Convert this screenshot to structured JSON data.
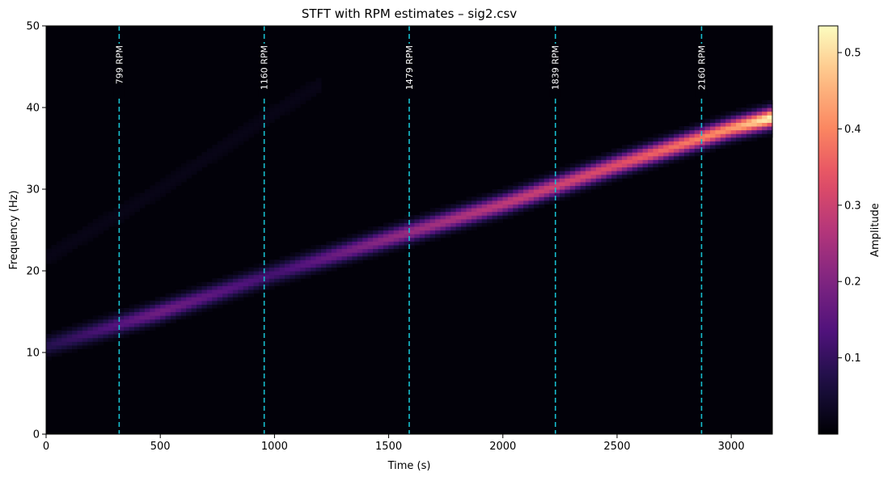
{
  "chart_data": {
    "type": "heatmap",
    "title": "STFT with RPM estimates – sig2.csv",
    "xlabel": "Time (s)",
    "ylabel": "Frequency (Hz)",
    "colorbar_label": "Amplitude",
    "colormap": "magma",
    "xlim": [
      0,
      3180
    ],
    "ylim": [
      0,
      50
    ],
    "x_ticks": [
      0,
      500,
      1000,
      1500,
      2000,
      2500,
      3000
    ],
    "y_ticks": [
      0,
      10,
      20,
      30,
      40,
      50
    ],
    "colorbar_range": [
      0.0,
      0.535
    ],
    "colorbar_ticks": [
      0.1,
      0.2,
      0.3,
      0.4,
      0.5
    ],
    "ridge": {
      "time": [
        0,
        500,
        1000,
        1500,
        2000,
        2500,
        3000,
        3180
      ],
      "frequency": [
        10.8,
        15.0,
        19.7,
        24.0,
        28.2,
        33.0,
        37.5,
        38.8
      ],
      "amplitude": [
        0.08,
        0.18,
        0.12,
        0.22,
        0.28,
        0.33,
        0.42,
        0.54
      ]
    },
    "rpm_markers": [
      {
        "time": 320,
        "label": "799 RPM"
      },
      {
        "time": 955,
        "label": "1160 RPM"
      },
      {
        "time": 1590,
        "label": "1479 RPM"
      },
      {
        "time": 2230,
        "label": "1839 RPM"
      },
      {
        "time": 2870,
        "label": "2160 RPM"
      }
    ],
    "marker_color": "#17becf"
  }
}
